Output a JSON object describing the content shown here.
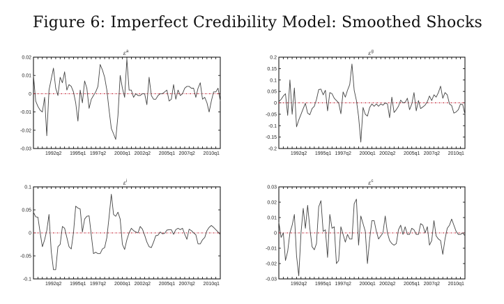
{
  "figure": {
    "title": "Figure 6: Imperfect Credibility Model: Smoothed Shocks"
  },
  "colors": {
    "line": "#444444",
    "zero_line": "#c0182a",
    "frame": "#000000"
  },
  "chart_data": [
    {
      "type": "line",
      "title": "ε",
      "title_superscript": "a",
      "xlabel": "",
      "ylabel": "",
      "x_range": [
        "1990q1",
        "2011q1"
      ],
      "x_tick_labels": [
        "1992q2",
        "1995q1",
        "1997q2",
        "2000q1",
        "2002q2",
        "2005q1",
        "2007q2",
        "2010q1"
      ],
      "x_tick_index": [
        9,
        20,
        29,
        40,
        49,
        60,
        69,
        80
      ],
      "ylim": [
        -0.03,
        0.02
      ],
      "y_ticks": [
        -0.03,
        -0.02,
        -0.01,
        0,
        0.01,
        0.02
      ],
      "y_tick_labels": [
        "-0.03",
        "-0.02",
        "-0.01",
        "0",
        "0.01",
        "0.02"
      ],
      "reference_line": 0,
      "grid": false,
      "values": [
        0.01,
        -0.004,
        -0.007,
        -0.009,
        -0.01,
        -0.002,
        -0.023,
        0.002,
        0.008,
        0.014,
        0.003,
        -0.001,
        0.009,
        0.006,
        0.012,
        0.002,
        0.005,
        0.004,
        0.001,
        -0.005,
        -0.015,
        0.002,
        -0.005,
        0.007,
        0.003,
        -0.008,
        -0.003,
        -0.001,
        0.001,
        0.004,
        0.016,
        0.013,
        0.009,
        0.002,
        -0.009,
        -0.019,
        -0.022,
        -0.025,
        -0.012,
        0.01,
        0.003,
        -0.002,
        0.019,
        0.002,
        0.002,
        -0.002,
        0.0,
        -0.001,
        -0.001,
        0.0,
        0.0,
        -0.006,
        0.009,
        -0.001,
        -0.003,
        -0.003,
        -0.001,
        0.0,
        0.0,
        0.001,
        0.002,
        -0.004,
        -0.003,
        0.005,
        -0.003,
        0.002,
        -0.001,
        0.0,
        0.003,
        0.004,
        0.004,
        0.003,
        0.003,
        -0.002,
        0.003,
        0.006,
        -0.003,
        -0.002,
        -0.005,
        -0.01,
        -0.004,
        0.001,
        0.001,
        0.003,
        -0.004
      ]
    },
    {
      "type": "line",
      "title": "ε",
      "title_superscript": "g",
      "xlabel": "",
      "ylabel": "",
      "x_range": [
        "1990q1",
        "2011q1"
      ],
      "x_tick_labels": [
        "1992q2",
        "1995q1",
        "1997q2",
        "2000q1",
        "2002q2",
        "2005q1",
        "2007q2",
        "2010q1"
      ],
      "x_tick_index": [
        9,
        20,
        29,
        40,
        49,
        60,
        69,
        80
      ],
      "ylim": [
        -0.2,
        0.2
      ],
      "y_ticks": [
        -0.2,
        -0.15,
        -0.1,
        -0.05,
        0,
        0.05,
        0.1,
        0.15,
        0.2
      ],
      "y_tick_labels": [
        "-0.2",
        "-0.15",
        "-0.1",
        "-0.05",
        "0",
        "0.05",
        "0.1",
        "0.15",
        "0.2"
      ],
      "reference_line": 0,
      "grid": false,
      "values": [
        0.005,
        0.015,
        0.03,
        0.04,
        -0.055,
        0.1,
        -0.05,
        0.065,
        -0.105,
        -0.075,
        -0.05,
        -0.025,
        -0.002,
        -0.045,
        -0.052,
        -0.025,
        -0.015,
        0.015,
        0.058,
        0.06,
        0.035,
        0.055,
        -0.035,
        0.045,
        0.04,
        0.02,
        0.01,
        0.0,
        -0.048,
        0.048,
        0.025,
        0.055,
        0.08,
        0.17,
        0.055,
        0.01,
        -0.06,
        -0.172,
        -0.02,
        -0.05,
        -0.058,
        -0.02,
        -0.005,
        -0.015,
        -0.005,
        -0.015,
        -0.005,
        -0.01,
        0.0,
        -0.005,
        -0.065,
        0.025,
        -0.042,
        -0.03,
        -0.015,
        0.012,
        0.0,
        0.002,
        0.02,
        -0.03,
        -0.005,
        0.045,
        -0.035,
        0.01,
        -0.025,
        -0.018,
        -0.01,
        0.005,
        0.03,
        0.01,
        0.035,
        0.025,
        0.045,
        0.073,
        0.02,
        0.045,
        0.035,
        -0.005,
        -0.012,
        -0.045,
        -0.04,
        -0.03,
        -0.005,
        -0.008,
        -0.05
      ]
    },
    {
      "type": "line",
      "title": "ε",
      "title_superscript": "i",
      "xlabel": "",
      "ylabel": "",
      "x_range": [
        "1990q1",
        "2011q1"
      ],
      "x_tick_labels": [
        "1992q2",
        "1995q1",
        "1997q2",
        "2000q1",
        "2002q2",
        "2005q1",
        "2007q2",
        "2010q1"
      ],
      "x_tick_index": [
        9,
        20,
        29,
        40,
        49,
        60,
        69,
        80
      ],
      "ylim": [
        -0.1,
        0.1
      ],
      "y_ticks": [
        -0.1,
        -0.05,
        0,
        0.05,
        0.1
      ],
      "y_tick_labels": [
        "-0.1",
        "-0.05",
        "0",
        "0.05",
        "0.1"
      ],
      "reference_line": 0,
      "grid": false,
      "values": [
        0.045,
        0.035,
        0.034,
        0.0,
        -0.03,
        -0.015,
        0.005,
        0.04,
        -0.04,
        -0.08,
        -0.08,
        -0.03,
        -0.025,
        0.014,
        0.01,
        -0.01,
        -0.03,
        -0.035,
        0.0,
        0.058,
        0.054,
        0.052,
        0.002,
        0.03,
        0.036,
        0.037,
        -0.005,
        -0.045,
        -0.042,
        -0.045,
        -0.045,
        -0.035,
        -0.032,
        -0.01,
        0.035,
        0.084,
        0.04,
        0.036,
        0.045,
        0.03,
        -0.025,
        -0.036,
        -0.015,
        0.0,
        0.01,
        0.005,
        0.002,
        0.0,
        0.014,
        0.008,
        -0.005,
        -0.02,
        -0.03,
        -0.032,
        -0.02,
        -0.006,
        -0.005,
        0.002,
        -0.002,
        -0.001,
        0.006,
        0.007,
        0.007,
        -0.003,
        0.007,
        0.01,
        0.007,
        0.01,
        -0.003,
        -0.014,
        0.008,
        0.005,
        0.0,
        -0.004,
        -0.024,
        -0.024,
        -0.015,
        -0.01,
        0.005,
        0.012,
        0.016,
        0.012,
        0.007,
        0.002,
        -0.004
      ]
    },
    {
      "type": "line",
      "title": "ε",
      "title_superscript": "c",
      "xlabel": "",
      "ylabel": "",
      "x_range": [
        "1990q1",
        "2011q1"
      ],
      "x_tick_labels": [
        "1992q2",
        "1995q1",
        "1997q2",
        "2000q1",
        "2002q2",
        "2005q1",
        "2007q2",
        "2010q1"
      ],
      "x_tick_index": [
        9,
        20,
        29,
        40,
        49,
        60,
        69,
        80
      ],
      "ylim": [
        -0.03,
        0.03
      ],
      "y_ticks": [
        -0.03,
        -0.02,
        -0.01,
        0,
        0.01,
        0.02,
        0.03
      ],
      "y_tick_labels": [
        "-0.03",
        "-0.02",
        "-0.01",
        "0",
        "0.01",
        "0.02",
        "0.03"
      ],
      "reference_line": 0,
      "grid": false,
      "values": [
        0.007,
        -0.003,
        0.0,
        -0.018,
        -0.012,
        0.0,
        0.005,
        0.012,
        -0.015,
        -0.028,
        0.0,
        0.016,
        0.003,
        0.018,
        0.003,
        -0.009,
        -0.011,
        -0.007,
        0.017,
        0.021,
        0.001,
        0.002,
        -0.016,
        0.012,
        0.003,
        0.004,
        -0.02,
        -0.018,
        0.004,
        -0.001,
        -0.006,
        -0.001,
        -0.004,
        -0.004,
        0.019,
        0.022,
        -0.008,
        0.011,
        0.006,
        0.001,
        -0.02,
        -0.004,
        0.008,
        0.008,
        0.001,
        -0.004,
        -0.002,
        0.0,
        0.011,
        0.0,
        -0.005,
        -0.007,
        -0.008,
        -0.007,
        0.002,
        0.005,
        -0.001,
        0.004,
        -0.001,
        -0.001,
        0.003,
        0.002,
        -0.001,
        -0.001,
        0.006,
        0.005,
        0.0,
        0.004,
        -0.008,
        -0.005,
        0.008,
        -0.002,
        -0.004,
        -0.005,
        -0.014,
        -0.004,
        0.003,
        0.005,
        0.009,
        0.005,
        0.001,
        -0.001,
        -0.001,
        0.0,
        -0.002
      ]
    }
  ]
}
